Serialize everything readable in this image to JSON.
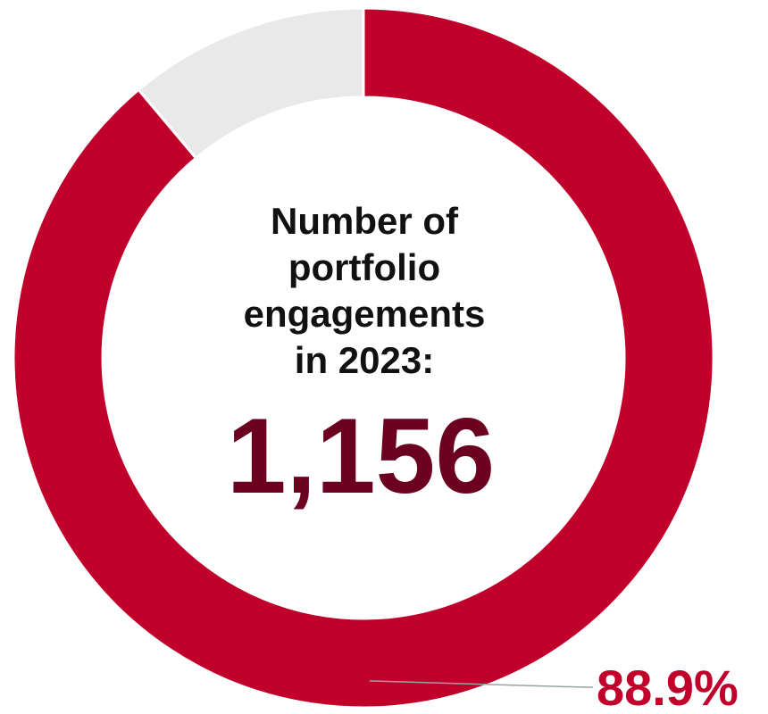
{
  "chart_data": {
    "type": "pie",
    "style": "donut",
    "categories": [
      "",
      ""
    ],
    "values": [
      88.9,
      11.1
    ],
    "colors": [
      "#c0002a",
      "#e8e9e8"
    ],
    "data_labels": [
      "88.9%",
      ""
    ],
    "center_text": {
      "title_lines": [
        "Number of",
        "portfolio",
        "engagements",
        "in 2023:"
      ],
      "value": "1,156"
    },
    "label_color": "#c0002a",
    "value_color": "#6b0020",
    "legend": "none"
  }
}
